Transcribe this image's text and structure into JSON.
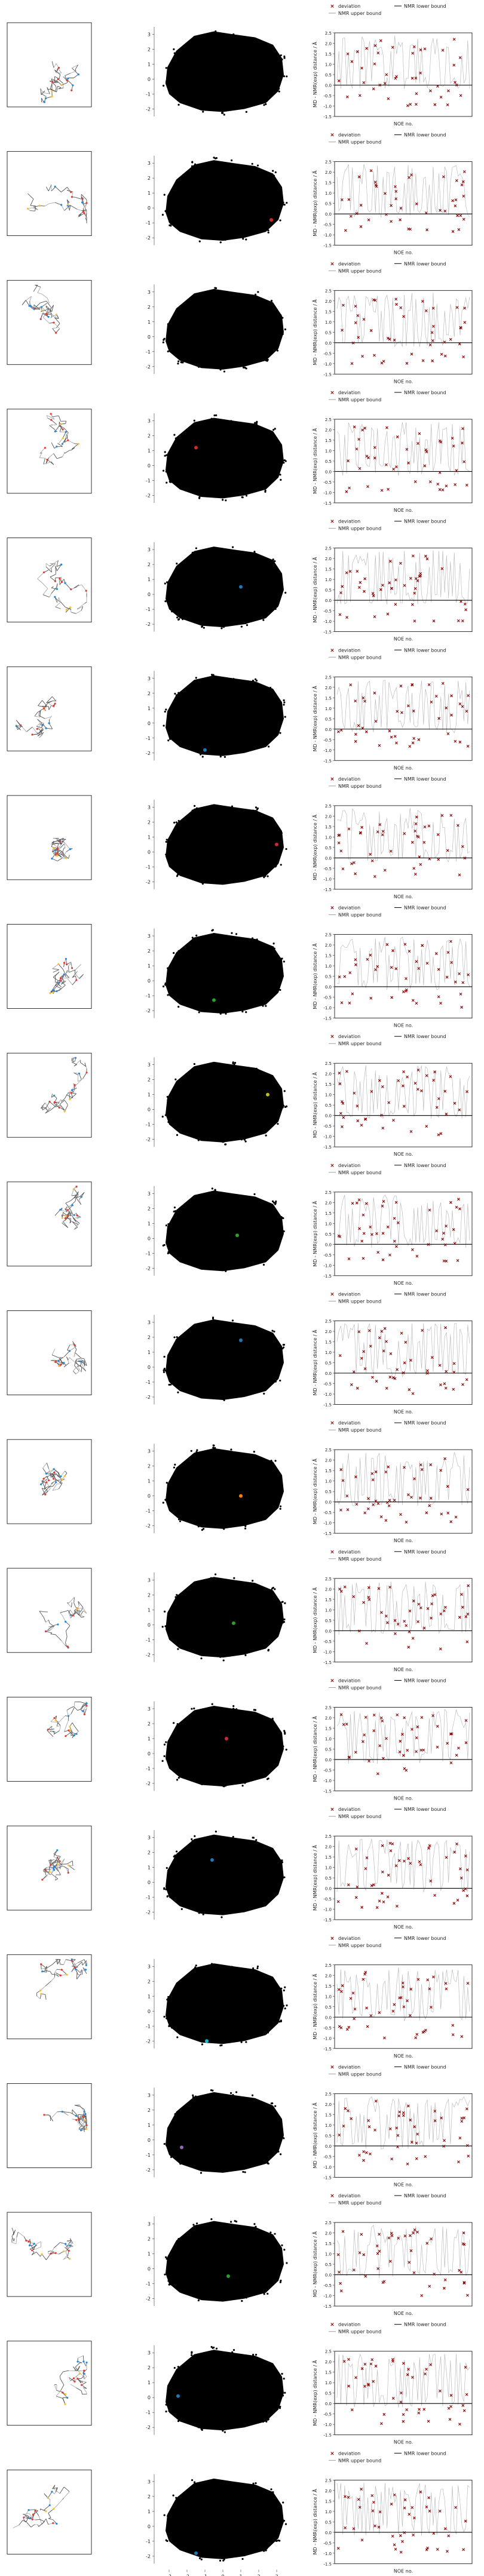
{
  "rows": 20,
  "chart_data": {
    "type": "figure-grid",
    "panels_per_row": [
      "molecule-structure",
      "embedding-scatter",
      "noe-deviation"
    ],
    "scatter": {
      "type": "scatter",
      "xlim": [
        -3.5,
        3.5
      ],
      "ylim": [
        -2.5,
        3.5
      ],
      "xticks": [
        "-3",
        "-2",
        "-1",
        "0",
        "1",
        "2",
        "3"
      ],
      "yticks": [
        "-2",
        "-1",
        "0",
        "1",
        "2",
        "3"
      ],
      "point_color": "#000000",
      "highlight_points": [
        {
          "row": 1,
          "x": null,
          "y": null
        },
        {
          "row": 2,
          "x": 2.7,
          "y": -0.8,
          "color": "#d62728"
        },
        {
          "row": 3,
          "x": null,
          "y": null
        },
        {
          "row": 4,
          "x": -1.5,
          "y": 1.2,
          "color": "#d62728"
        },
        {
          "row": 5,
          "x": 1.0,
          "y": 0.5,
          "color": "#1f77b4"
        },
        {
          "row": 6,
          "x": -1.0,
          "y": -1.8,
          "color": "#1f77b4"
        },
        {
          "row": 7,
          "x": 3.0,
          "y": 0.5,
          "color": "#d62728"
        },
        {
          "row": 8,
          "x": -0.5,
          "y": -1.3,
          "color": "#2ca02c"
        },
        {
          "row": 9,
          "x": 2.5,
          "y": 1.0,
          "color": "#bcbd22"
        },
        {
          "row": 10,
          "x": 0.8,
          "y": 0.2,
          "color": "#2ca02c"
        },
        {
          "row": 11,
          "x": 1.0,
          "y": 1.8,
          "color": "#1f77b4"
        },
        {
          "row": 12,
          "x": 1.0,
          "y": 0.0,
          "color": "#ff7f0e"
        },
        {
          "row": 13,
          "x": 0.6,
          "y": 0.1,
          "color": "#2ca02c"
        },
        {
          "row": 14,
          "x": 0.2,
          "y": 1.0,
          "color": "#d62728"
        },
        {
          "row": 15,
          "x": -0.6,
          "y": 1.5,
          "color": "#1f77b4"
        },
        {
          "row": 16,
          "x": -0.9,
          "y": -2.0,
          "color": "#17becf"
        },
        {
          "row": 17,
          "x": -2.3,
          "y": -0.5,
          "color": "#9467bd"
        },
        {
          "row": 18,
          "x": 0.3,
          "y": -0.5,
          "color": "#2ca02c"
        },
        {
          "row": 19,
          "x": -2.5,
          "y": 0.1,
          "color": "#1f77b4"
        },
        {
          "row": 20,
          "x": -1.5,
          "y": -1.8,
          "color": "#1f77b4"
        }
      ]
    },
    "noe": {
      "type": "scatter",
      "xlabel": "NOE no.",
      "ylabel": "MD - NMR(exp) distance / Å",
      "ylim": [
        -1.5,
        2.5
      ],
      "yticks": [
        "-1.5",
        "-1.0",
        "-0.5",
        "0.0",
        "0.5",
        "1.0",
        "1.5",
        "2.0",
        "2.5"
      ],
      "legend_placement": "top",
      "legend": [
        {
          "name": "deviation",
          "marker": "x",
          "color": "#8b0000"
        },
        {
          "name": "NMR lower bound",
          "color": "#000000"
        },
        {
          "name": "NMR upper bound",
          "color": "#9e9e9e"
        }
      ],
      "zero_line": 0.0
    }
  }
}
